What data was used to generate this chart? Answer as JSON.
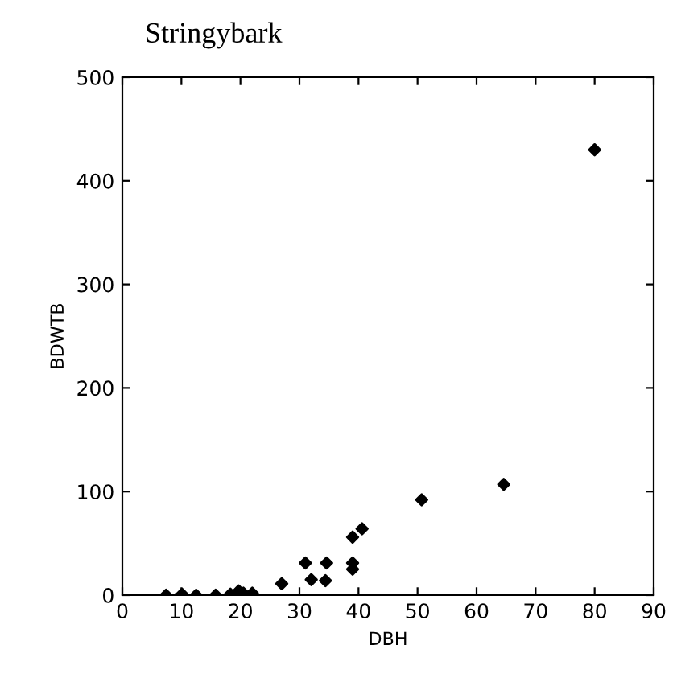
{
  "chart_data": {
    "type": "scatter",
    "title": "Stringybark",
    "xlabel": "DBH",
    "ylabel": "BDWTB",
    "x": [
      7.4,
      10.1,
      12.5,
      15.8,
      18.3,
      19.7,
      20.5,
      22,
      27,
      31,
      32,
      34.4,
      34.6,
      39,
      39,
      39,
      40.6,
      50.7,
      64.6,
      80
    ],
    "values": [
      0,
      1,
      0,
      0,
      1,
      4,
      2,
      2,
      11,
      31,
      15,
      14,
      31,
      56,
      31,
      25,
      64,
      92,
      107,
      430
    ],
    "color": "#000000",
    "marker": "diamond",
    "xlim": [
      0,
      90
    ],
    "xticks": [
      0,
      10,
      20,
      30,
      40,
      50,
      60,
      70,
      80,
      90
    ],
    "ylim": [
      0,
      500
    ],
    "yticks": [
      0,
      100,
      200,
      300,
      400,
      500
    ],
    "grid": false
  }
}
